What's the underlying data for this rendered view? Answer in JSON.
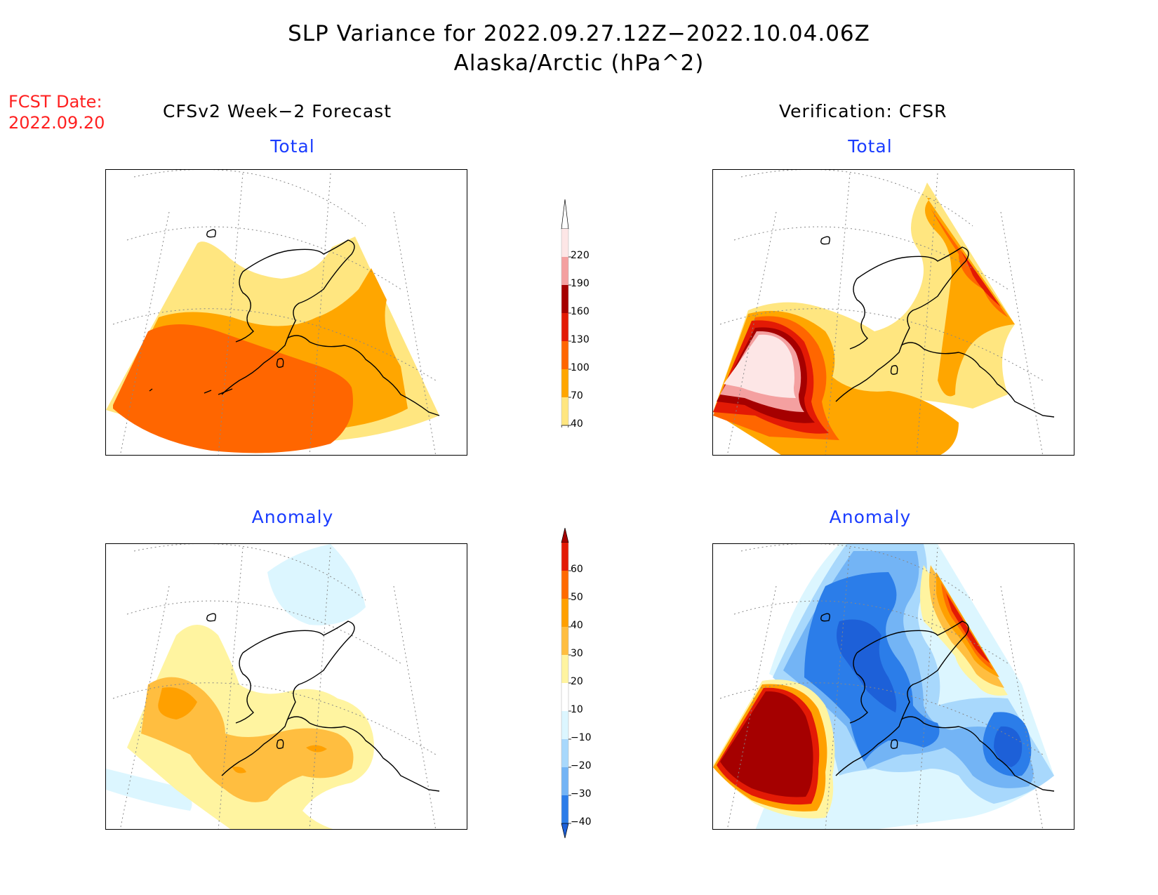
{
  "header": {
    "title_line1": "SLP Variance for 2022.09.27.12Z−2022.10.04.06Z",
    "title_line2": "Alaska/Arctic (hPa^2)"
  },
  "forecast_date": {
    "label": "FCST Date:",
    "value": "2022.09.20"
  },
  "columns": {
    "left_title": "CFSv2 Week−2 Forecast",
    "right_title": "Verification: CFSR"
  },
  "panels": {
    "forecast_total_label": "Total",
    "verification_total_label": "Total",
    "forecast_anomaly_label": "Anomaly",
    "verification_anomaly_label": "Anomaly"
  },
  "colorbars": {
    "total": {
      "levels": [
        "40",
        "70",
        "100",
        "130",
        "160",
        "190",
        "220"
      ],
      "colors": [
        "#ffe680",
        "#ffa600",
        "#ff6600",
        "#e31a05",
        "#a50000",
        "#f4a0a0",
        "#fde6e6"
      ],
      "low_color": "#ffffff",
      "high_color": "#ffffff"
    },
    "anomaly": {
      "levels": [
        "−40",
        "−30",
        "−20",
        "−10",
        "10",
        "20",
        "30",
        "40",
        "50",
        "60"
      ],
      "colors": [
        "#2b7de9",
        "#73b4f5",
        "#a8d8fc",
        "#dcf6ff",
        "#ffffff",
        "#fff4a0",
        "#ffbe40",
        "#ffa000",
        "#ff6a00",
        "#e31a05"
      ],
      "low_color": "#1d60d8",
      "high_color": "#a50000"
    }
  },
  "map_colors": {
    "c40": "#ffe680",
    "c70": "#ffa600",
    "c100": "#ff6600",
    "c130": "#e31a05",
    "c160": "#a50000",
    "c190": "#f4a0a0",
    "c220": "#fde6e6",
    "a10": "#fff4a0",
    "a20": "#ffbe40",
    "a30": "#ffa000",
    "a40": "#ff6a00",
    "a50": "#e31a05",
    "a60": "#a50000",
    "n10": "#dcf6ff",
    "n20": "#a8d8fc",
    "n30": "#73b4f5",
    "n40": "#2b7de9",
    "n50": "#1d60d8"
  }
}
